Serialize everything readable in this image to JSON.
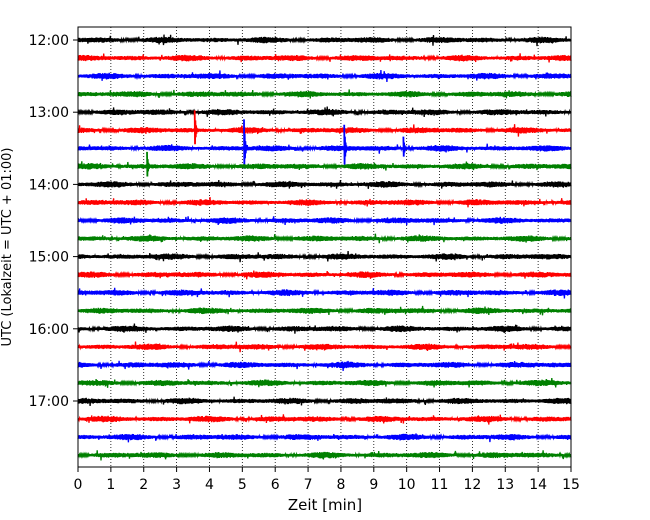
{
  "chart_data": {
    "type": "line",
    "title": "",
    "xlabel": "Zeit  [min]",
    "ylabel": "UTC (Lokalzeit = UTC + 01:00)",
    "xlim": [
      0,
      15
    ],
    "x_ticks": [
      "0",
      "1",
      "2",
      "3",
      "4",
      "5",
      "6",
      "7",
      "8",
      "9",
      "10",
      "11",
      "12",
      "13",
      "14",
      "15"
    ],
    "y_tick_labels": [
      "12:00",
      "13:00",
      "14:00",
      "15:00",
      "16:00",
      "17:00"
    ],
    "grid": "vertical dotted lines at each minute",
    "trace_colors": [
      "#000000",
      "#ff0000",
      "#0000ff",
      "#008000"
    ],
    "traces": [
      {
        "start": "12:00",
        "color": "#000000"
      },
      {
        "start": "12:15",
        "color": "#ff0000"
      },
      {
        "start": "12:30",
        "color": "#0000ff"
      },
      {
        "start": "12:45",
        "color": "#008000"
      },
      {
        "start": "13:00",
        "color": "#000000"
      },
      {
        "start": "13:15",
        "color": "#ff0000"
      },
      {
        "start": "13:30",
        "color": "#0000ff"
      },
      {
        "start": "13:45",
        "color": "#008000"
      },
      {
        "start": "14:00",
        "color": "#000000"
      },
      {
        "start": "14:15",
        "color": "#ff0000"
      },
      {
        "start": "14:30",
        "color": "#0000ff"
      },
      {
        "start": "14:45",
        "color": "#008000"
      },
      {
        "start": "15:00",
        "color": "#000000"
      },
      {
        "start": "15:15",
        "color": "#ff0000"
      },
      {
        "start": "15:30",
        "color": "#0000ff"
      },
      {
        "start": "15:45",
        "color": "#008000"
      },
      {
        "start": "16:00",
        "color": "#000000"
      },
      {
        "start": "16:15",
        "color": "#ff0000"
      },
      {
        "start": "16:30",
        "color": "#0000ff"
      },
      {
        "start": "16:45",
        "color": "#008000"
      },
      {
        "start": "17:00",
        "color": "#000000"
      },
      {
        "start": "17:15",
        "color": "#ff0000"
      },
      {
        "start": "17:30",
        "color": "#0000ff"
      },
      {
        "start": "17:45",
        "color": "#008000"
      }
    ],
    "events": [
      {
        "trace": "13:15",
        "minute": 3.55,
        "amplitude": 2.2
      },
      {
        "trace": "13:30",
        "minute": 5.05,
        "amplitude": 3.2
      },
      {
        "trace": "13:30",
        "minute": 8.1,
        "amplitude": 2.6
      },
      {
        "trace": "13:30",
        "minute": 9.9,
        "amplitude": 1.3
      },
      {
        "trace": "13:45",
        "minute": 2.1,
        "amplitude": 1.6
      }
    ]
  }
}
